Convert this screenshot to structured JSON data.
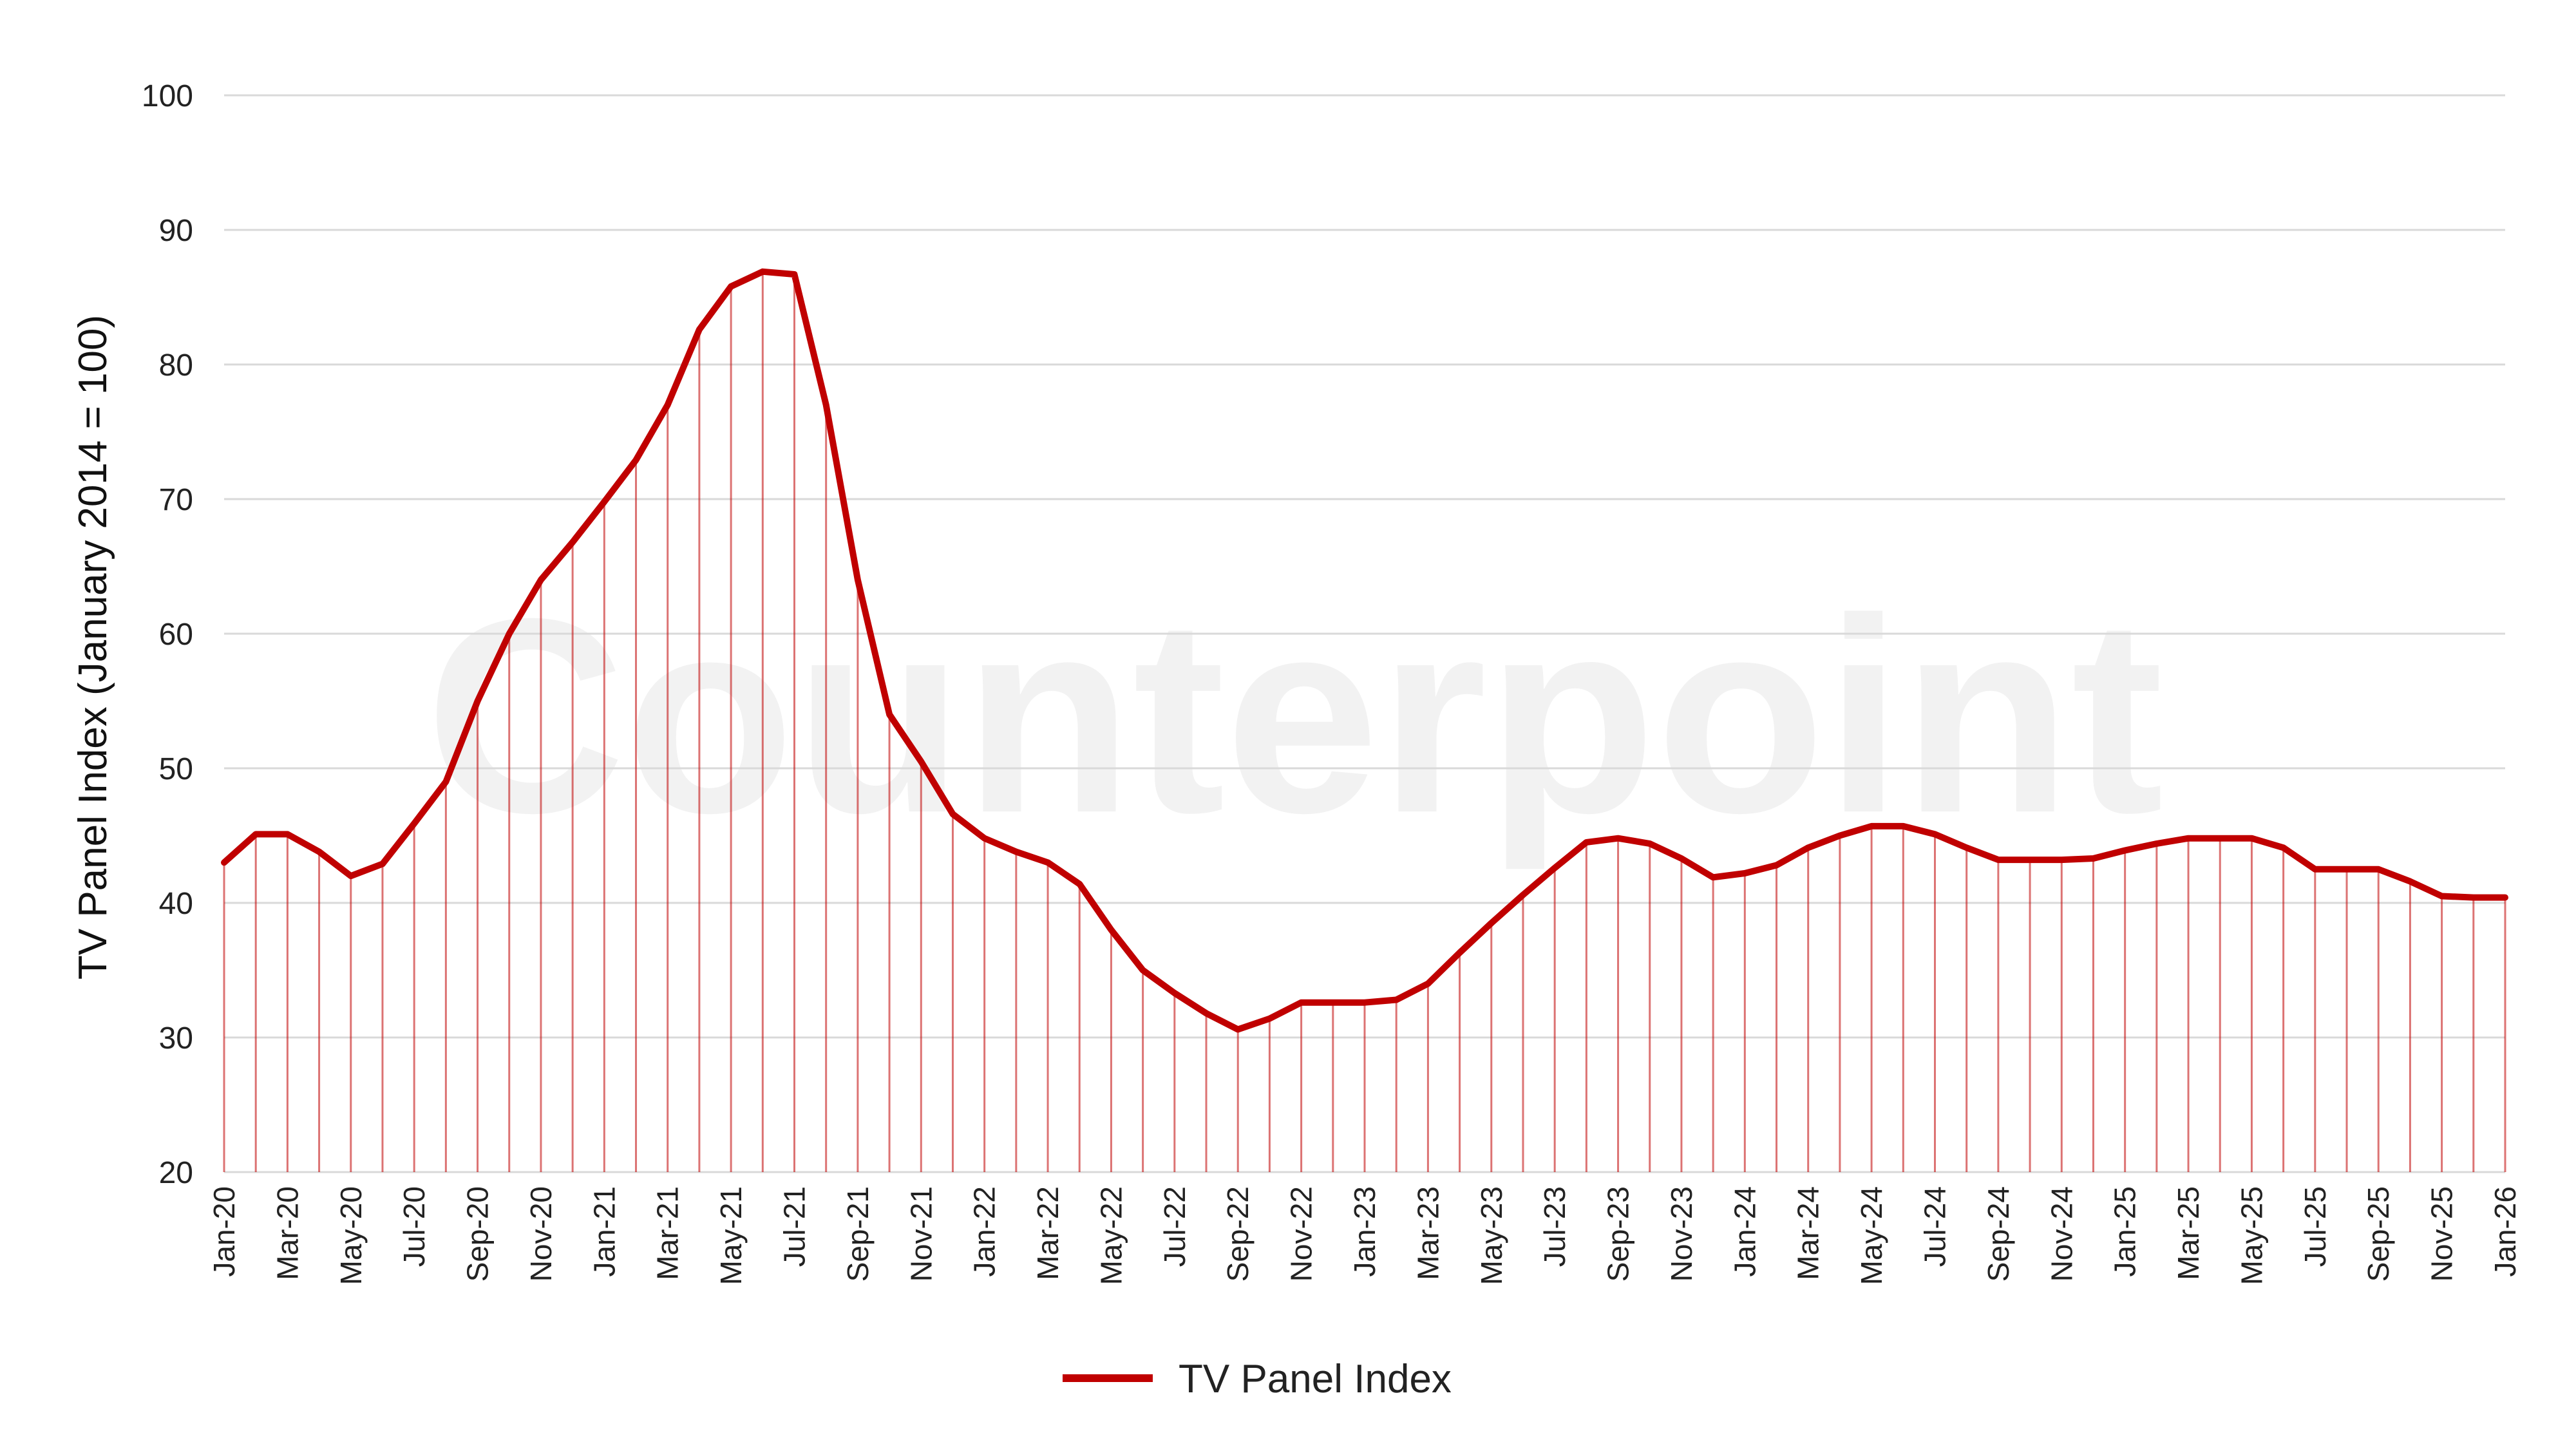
{
  "chart_data": {
    "type": "area",
    "ylabel": "TV Panel Index (January 2014 = 100)",
    "ylim": [
      20,
      100
    ],
    "yticks": [
      20,
      30,
      40,
      50,
      60,
      70,
      80,
      90,
      100
    ],
    "grid": true,
    "legend_position": "bottom",
    "watermark": "Counterpoint",
    "x": [
      "Jan-20",
      "Feb-20",
      "Mar-20",
      "Apr-20",
      "May-20",
      "Jun-20",
      "Jul-20",
      "Aug-20",
      "Sep-20",
      "Oct-20",
      "Nov-20",
      "Dec-20",
      "Jan-21",
      "Feb-21",
      "Mar-21",
      "Apr-21",
      "May-21",
      "Jun-21",
      "Jul-21",
      "Aug-21",
      "Sep-21",
      "Oct-21",
      "Nov-21",
      "Dec-21",
      "Jan-22",
      "Feb-22",
      "Mar-22",
      "Apr-22",
      "May-22",
      "Jun-22",
      "Jul-22",
      "Aug-22",
      "Sep-22",
      "Oct-22",
      "Nov-22",
      "Dec-22",
      "Jan-23",
      "Feb-23",
      "Mar-23",
      "Apr-23",
      "May-23",
      "Jun-23",
      "Jul-23",
      "Aug-23",
      "Sep-23",
      "Oct-23",
      "Nov-23",
      "Dec-23",
      "Jan-24",
      "Feb-24",
      "Mar-24",
      "Apr-24",
      "May-24",
      "Jun-24",
      "Jul-24",
      "Aug-24",
      "Sep-24",
      "Oct-24",
      "Nov-24",
      "Dec-24",
      "Jan-25",
      "Feb-25",
      "Mar-25",
      "Apr-25",
      "May-25",
      "Jun-25",
      "Jul-25",
      "Aug-25",
      "Sep-25",
      "Oct-25",
      "Nov-25",
      "Dec-25",
      "Jan-26"
    ],
    "xtick_labels": [
      "Jan-20",
      "Mar-20",
      "May-20",
      "Jul-20",
      "Sep-20",
      "Nov-20",
      "Jan-21",
      "Mar-21",
      "May-21",
      "Jul-21",
      "Sep-21",
      "Nov-21",
      "Jan-22",
      "Mar-22",
      "May-22",
      "Jul-22",
      "Sep-22",
      "Nov-22",
      "Jan-23",
      "Mar-23",
      "May-23",
      "Jul-23",
      "Sep-23",
      "Nov-23",
      "Jan-24",
      "Mar-24",
      "May-24",
      "Jul-24",
      "Sep-24",
      "Nov-24",
      "Jan-25",
      "Mar-25",
      "May-25",
      "Jul-25",
      "Sep-25",
      "Nov-25",
      "Jan-26"
    ],
    "series": [
      {
        "name": "TV Panel Index",
        "color": "#c00000",
        "values": [
          43.0,
          45.1,
          45.1,
          43.8,
          42.0,
          42.9,
          45.9,
          49.0,
          55.0,
          60.0,
          64.0,
          66.8,
          69.8,
          72.9,
          77.0,
          82.6,
          85.8,
          86.9,
          86.7,
          77.0,
          64.0,
          54.0,
          50.5,
          46.6,
          44.8,
          43.8,
          43.0,
          41.4,
          38.0,
          35.0,
          33.3,
          31.8,
          30.6,
          31.4,
          32.6,
          32.6,
          32.6,
          32.8,
          34.0,
          36.3,
          38.5,
          40.6,
          42.6,
          44.5,
          44.8,
          44.4,
          43.3,
          41.9,
          42.2,
          42.8,
          44.1,
          45.0,
          45.7,
          45.7,
          45.1,
          44.1,
          43.2,
          43.2,
          43.2,
          43.3,
          43.9,
          44.4,
          44.8,
          44.8,
          44.8,
          44.1,
          42.5,
          42.5,
          42.5,
          41.6,
          40.5,
          40.4,
          40.4
        ]
      }
    ]
  }
}
